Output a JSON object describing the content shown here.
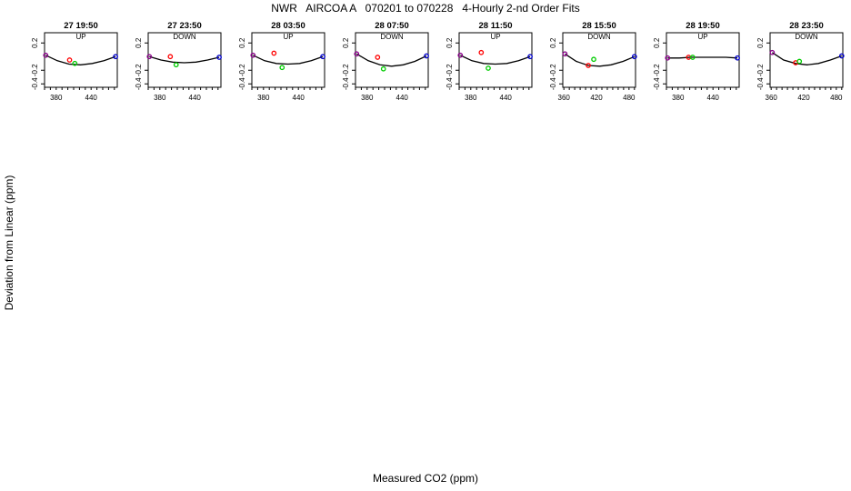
{
  "figure": {
    "title": "NWR   AIRCOA A   070201 to 070228   4-Hourly 2-nd Order Fits",
    "xlabel": "Measured CO2 (ppm)",
    "ylabel": "Deviation from Linear (ppm)"
  },
  "colors": {
    "axis": "#000000",
    "curve": "#000000",
    "low_point": "#8b008b",
    "mid_low_point": "#ff0000",
    "mid_high_point": "#00cc00",
    "high_point": "#0000cd"
  },
  "chart_data": [
    {
      "type": "scatter",
      "title": "27 19:50",
      "subtitle": "UP",
      "x_ticks": [
        "380",
        "440"
      ],
      "y_ticks": [
        "0.2",
        "-0.2",
        "-0.4"
      ],
      "xlim": [
        360,
        485
      ],
      "ylim": [
        -0.45,
        0.35
      ],
      "series": [
        {
          "points": [
            [
              362,
              0.02
            ],
            [
              403,
              -0.05
            ],
            [
              412,
              -0.1
            ],
            [
              482,
              0.0
            ]
          ]
        }
      ],
      "fit_curve": {
        "x": [
          362,
          382,
          402,
          422,
          442,
          462,
          482
        ],
        "y": [
          0.02,
          -0.06,
          -0.11,
          -0.12,
          -0.1,
          -0.06,
          0.0
        ]
      }
    },
    {
      "type": "scatter",
      "title": "27 23:50",
      "subtitle": "DOWN",
      "x_ticks": [
        "380",
        "440"
      ],
      "y_ticks": [
        "0.2",
        "-0.2",
        "-0.4"
      ],
      "xlim": [
        360,
        485
      ],
      "ylim": [
        -0.45,
        0.35
      ],
      "series": [
        {
          "points": [
            [
              362,
              0.0
            ],
            [
              398,
              0.0
            ],
            [
              408,
              -0.12
            ],
            [
              482,
              -0.01
            ]
          ]
        }
      ],
      "fit_curve": {
        "x": [
          362,
          382,
          402,
          422,
          442,
          462,
          482
        ],
        "y": [
          0.0,
          -0.05,
          -0.08,
          -0.09,
          -0.08,
          -0.05,
          -0.01
        ]
      }
    },
    {
      "type": "scatter",
      "title": "28 03:50",
      "subtitle": "UP",
      "x_ticks": [
        "380",
        "440"
      ],
      "y_ticks": [
        "0.2",
        "-0.2",
        "-0.4"
      ],
      "xlim": [
        360,
        485
      ],
      "ylim": [
        -0.45,
        0.35
      ],
      "series": [
        {
          "points": [
            [
              362,
              0.02
            ],
            [
              398,
              0.05
            ],
            [
              412,
              -0.16
            ],
            [
              482,
              0.0
            ]
          ]
        }
      ],
      "fit_curve": {
        "x": [
          362,
          382,
          402,
          422,
          442,
          462,
          482
        ],
        "y": [
          0.02,
          -0.06,
          -0.1,
          -0.11,
          -0.1,
          -0.06,
          0.0
        ]
      }
    },
    {
      "type": "scatter",
      "title": "28 07:50",
      "subtitle": "DOWN",
      "x_ticks": [
        "380",
        "440"
      ],
      "y_ticks": [
        "0.2",
        "-0.2",
        "-0.4"
      ],
      "xlim": [
        360,
        485
      ],
      "ylim": [
        -0.45,
        0.35
      ],
      "series": [
        {
          "points": [
            [
              362,
              0.04
            ],
            [
              398,
              -0.01
            ],
            [
              408,
              -0.18
            ],
            [
              482,
              0.01
            ]
          ]
        }
      ],
      "fit_curve": {
        "x": [
          362,
          382,
          402,
          422,
          442,
          462,
          482
        ],
        "y": [
          0.04,
          -0.06,
          -0.12,
          -0.14,
          -0.12,
          -0.07,
          0.01
        ]
      }
    },
    {
      "type": "scatter",
      "title": "28 11:50",
      "subtitle": "UP",
      "x_ticks": [
        "380",
        "440"
      ],
      "y_ticks": [
        "0.2",
        "-0.2",
        "-0.4"
      ],
      "xlim": [
        360,
        485
      ],
      "ylim": [
        -0.45,
        0.35
      ],
      "series": [
        {
          "points": [
            [
              362,
              0.02
            ],
            [
              398,
              0.06
            ],
            [
              410,
              -0.17
            ],
            [
              482,
              0.0
            ]
          ]
        }
      ],
      "fit_curve": {
        "x": [
          362,
          382,
          402,
          422,
          442,
          462,
          482
        ],
        "y": [
          0.02,
          -0.06,
          -0.1,
          -0.11,
          -0.1,
          -0.06,
          0.0
        ]
      }
    },
    {
      "type": "scatter",
      "title": "28 15:50",
      "subtitle": "DOWN",
      "x_ticks": [
        "360",
        "420",
        "480"
      ],
      "y_ticks": [
        "0.2",
        "-0.2",
        "-0.4"
      ],
      "xlim": [
        358,
        492
      ],
      "ylim": [
        -0.45,
        0.35
      ],
      "series": [
        {
          "points": [
            [
              362,
              0.04
            ],
            [
              405,
              -0.13
            ],
            [
              415,
              -0.04
            ],
            [
              490,
              0.0
            ]
          ]
        }
      ],
      "fit_curve": {
        "x": [
          362,
          383,
          405,
          426,
          447,
          469,
          490
        ],
        "y": [
          0.04,
          -0.07,
          -0.13,
          -0.14,
          -0.12,
          -0.07,
          0.0
        ]
      }
    },
    {
      "type": "scatter",
      "title": "28 19:50",
      "subtitle": "UP",
      "x_ticks": [
        "380",
        "440"
      ],
      "y_ticks": [
        "0.2",
        "-0.2",
        "-0.4"
      ],
      "xlim": [
        360,
        485
      ],
      "ylim": [
        -0.45,
        0.35
      ],
      "series": [
        {
          "points": [
            [
              362,
              -0.02
            ],
            [
              398,
              -0.01
            ],
            [
              405,
              -0.01
            ],
            [
              482,
              -0.02
            ]
          ]
        }
      ],
      "fit_curve": {
        "x": [
          362,
          382,
          402,
          422,
          442,
          462,
          482
        ],
        "y": [
          -0.02,
          -0.02,
          -0.01,
          -0.01,
          -0.01,
          -0.01,
          -0.02
        ]
      }
    },
    {
      "type": "scatter",
      "title": "28 23:50",
      "subtitle": "DOWN",
      "x_ticks": [
        "360",
        "420",
        "480"
      ],
      "y_ticks": [
        "0.2",
        "-0.2",
        "-0.4"
      ],
      "xlim": [
        358,
        492
      ],
      "ylim": [
        -0.45,
        0.35
      ],
      "series": [
        {
          "points": [
            [
              362,
              0.06
            ],
            [
              405,
              -0.09
            ],
            [
              412,
              -0.07
            ],
            [
              490,
              0.01
            ]
          ]
        }
      ],
      "fit_curve": {
        "x": [
          362,
          383,
          405,
          426,
          447,
          469,
          490
        ],
        "y": [
          0.06,
          -0.05,
          -0.1,
          -0.12,
          -0.1,
          -0.05,
          0.01
        ]
      }
    }
  ]
}
